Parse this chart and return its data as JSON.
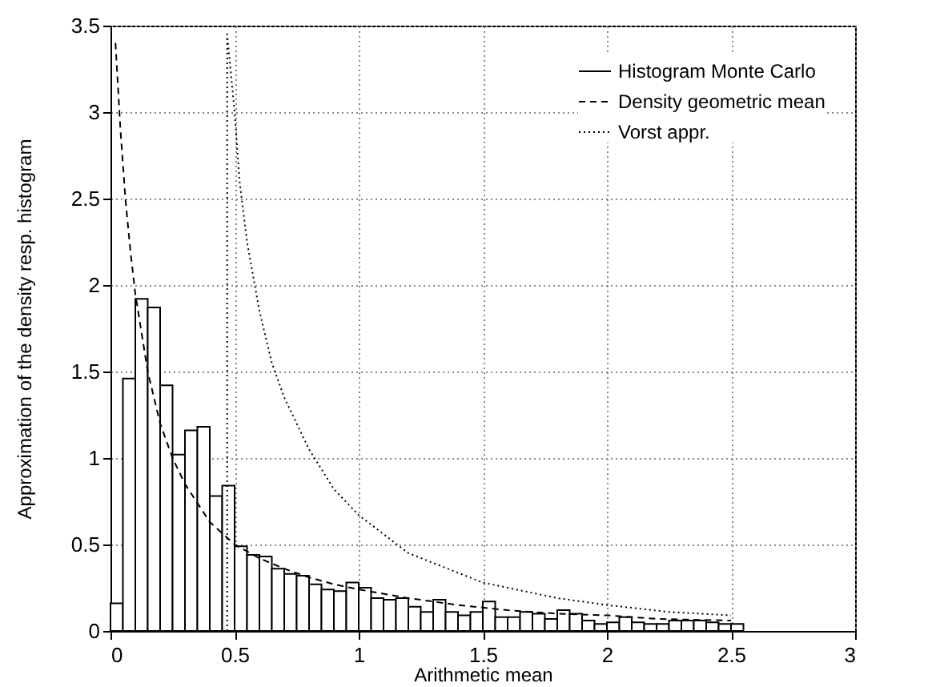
{
  "chart_data": {
    "type": "histogram",
    "xlabel": "Arithmetic mean",
    "ylabel": "Approximation of the density resp. histogram",
    "xlim": [
      0,
      3
    ],
    "ylim": [
      0,
      3.5
    ],
    "xticks": [
      0,
      0.5,
      1,
      1.5,
      2,
      2.5,
      3
    ],
    "yticks": [
      0,
      0.5,
      1,
      1.5,
      2,
      2.5,
      3,
      3.5
    ],
    "grid": true,
    "legend": "top right",
    "series": [
      {
        "name": "Histogram Monte Carlo",
        "color": "#000000",
        "line_style": "solid",
        "bins": [
          0,
          0.05,
          0.1,
          0.15,
          0.2,
          0.25,
          0.3,
          0.35,
          0.4,
          0.45,
          0.5,
          0.55,
          0.6,
          0.65,
          0.7,
          0.75,
          0.8,
          0.85,
          0.9,
          0.95,
          1,
          1.05,
          1.1,
          1.15,
          1.2,
          1.25,
          1.3,
          1.35,
          1.4,
          1.45,
          1.5,
          1.55,
          1.6,
          1.65,
          1.7,
          1.75,
          1.8,
          1.85,
          1.9,
          1.95,
          2,
          2.05,
          2.1,
          2.15,
          2.2,
          2.25,
          2.3,
          2.35,
          2.4,
          2.45,
          2.5,
          2.55
        ],
        "values": [
          0.16,
          1.46,
          1.92,
          1.87,
          1.42,
          1.02,
          1.16,
          1.18,
          0.78,
          0.84,
          0.49,
          0.44,
          0.43,
          0.36,
          0.33,
          0.32,
          0.27,
          0.24,
          0.23,
          0.28,
          0.25,
          0.19,
          0.18,
          0.19,
          0.14,
          0.11,
          0.18,
          0.11,
          0.09,
          0.11,
          0.17,
          0.08,
          0.08,
          0.11,
          0.1,
          0.07,
          0.12,
          0.1,
          0.06,
          0.04,
          0.05,
          0.08,
          0.05,
          0.04,
          0.04,
          0.06,
          0.06,
          0.06,
          0.05,
          0.04,
          0.04
        ]
      },
      {
        "name": "Density geometric mean",
        "type": "line",
        "color": "#000000",
        "line_style": "dashed",
        "x": [
          0.02,
          0.04,
          0.06,
          0.08,
          0.1,
          0.15,
          0.2,
          0.25,
          0.3,
          0.4,
          0.5,
          0.6,
          0.7,
          0.8,
          0.9,
          1.0,
          1.2,
          1.4,
          1.6,
          1.8,
          2.0,
          2.2,
          2.5
        ],
        "values": [
          3.4,
          2.9,
          2.5,
          2.2,
          1.95,
          1.5,
          1.2,
          1.0,
          0.85,
          0.63,
          0.5,
          0.42,
          0.36,
          0.31,
          0.27,
          0.24,
          0.19,
          0.15,
          0.12,
          0.1,
          0.09,
          0.07,
          0.06
        ]
      },
      {
        "name": "Vorst appr.",
        "type": "line",
        "color": "#000000",
        "line_style": "dotted",
        "x": [
          0.47,
          0.47,
          0.5,
          0.52,
          0.55,
          0.6,
          0.65,
          0.7,
          0.8,
          0.9,
          1.0,
          1.2,
          1.5,
          1.8,
          2.0,
          2.25,
          2.5
        ],
        "values": [
          0,
          3.45,
          3.0,
          2.6,
          2.25,
          1.85,
          1.55,
          1.35,
          1.05,
          0.82,
          0.67,
          0.45,
          0.28,
          0.19,
          0.15,
          0.11,
          0.09
        ]
      }
    ]
  }
}
